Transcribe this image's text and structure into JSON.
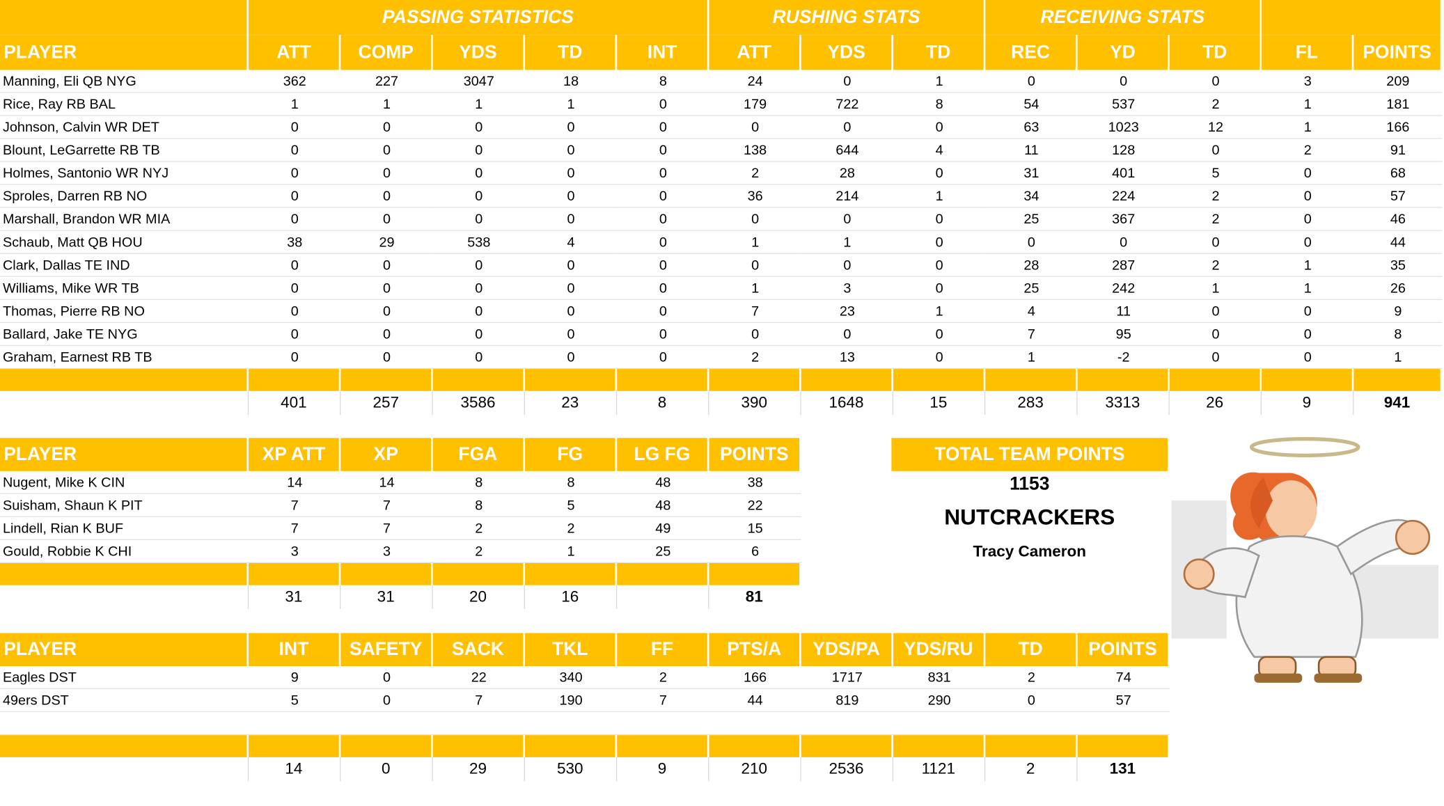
{
  "colors": {
    "header_bg": "#ffc000",
    "header_text": "#ffffff",
    "body_text": "#000000"
  },
  "offense": {
    "groups": [
      "PASSING STATISTICS",
      "RUSHING STATS",
      "RECEIVING STATS"
    ],
    "columns": [
      "PLAYER",
      "ATT",
      "COMP",
      "YDS",
      "TD",
      "INT",
      "ATT",
      "YDS",
      "TD",
      "REC",
      "YD",
      "TD",
      "FL",
      "POINTS"
    ],
    "rows": [
      [
        "Manning, Eli QB NYG",
        "362",
        "227",
        "3047",
        "18",
        "8",
        "24",
        "0",
        "1",
        "0",
        "0",
        "0",
        "3",
        "209"
      ],
      [
        "Rice, Ray RB BAL",
        "1",
        "1",
        "1",
        "1",
        "0",
        "179",
        "722",
        "8",
        "54",
        "537",
        "2",
        "1",
        "181"
      ],
      [
        "Johnson, Calvin WR DET",
        "0",
        "0",
        "0",
        "0",
        "0",
        "0",
        "0",
        "0",
        "63",
        "1023",
        "12",
        "1",
        "166"
      ],
      [
        "Blount, LeGarrette RB TB",
        "0",
        "0",
        "0",
        "0",
        "0",
        "138",
        "644",
        "4",
        "11",
        "128",
        "0",
        "2",
        "91"
      ],
      [
        "Holmes, Santonio WR NYJ",
        "0",
        "0",
        "0",
        "0",
        "0",
        "2",
        "28",
        "0",
        "31",
        "401",
        "5",
        "0",
        "68"
      ],
      [
        "Sproles, Darren RB NO",
        "0",
        "0",
        "0",
        "0",
        "0",
        "36",
        "214",
        "1",
        "34",
        "224",
        "2",
        "0",
        "57"
      ],
      [
        "Marshall, Brandon WR MIA",
        "0",
        "0",
        "0",
        "0",
        "0",
        "0",
        "0",
        "0",
        "25",
        "367",
        "2",
        "0",
        "46"
      ],
      [
        "Schaub, Matt QB HOU",
        "38",
        "29",
        "538",
        "4",
        "0",
        "1",
        "1",
        "0",
        "0",
        "0",
        "0",
        "0",
        "44"
      ],
      [
        "Clark, Dallas TE IND",
        "0",
        "0",
        "0",
        "0",
        "0",
        "0",
        "0",
        "0",
        "28",
        "287",
        "2",
        "1",
        "35"
      ],
      [
        "Williams, Mike WR TB",
        "0",
        "0",
        "0",
        "0",
        "0",
        "1",
        "3",
        "0",
        "25",
        "242",
        "1",
        "1",
        "26"
      ],
      [
        "Thomas, Pierre RB NO",
        "0",
        "0",
        "0",
        "0",
        "0",
        "7",
        "23",
        "1",
        "4",
        "11",
        "0",
        "0",
        "9"
      ],
      [
        "Ballard, Jake TE NYG",
        "0",
        "0",
        "0",
        "0",
        "0",
        "0",
        "0",
        "0",
        "7",
        "95",
        "0",
        "0",
        "8"
      ],
      [
        "Graham, Earnest RB TB",
        "0",
        "0",
        "0",
        "0",
        "0",
        "2",
        "13",
        "0",
        "1",
        "-2",
        "0",
        "0",
        "1"
      ]
    ],
    "totals": [
      "",
      "401",
      "257",
      "3586",
      "23",
      "8",
      "390",
      "1648",
      "15",
      "283",
      "3313",
      "26",
      "9",
      "941"
    ]
  },
  "kickers": {
    "columns": [
      "PLAYER",
      "XP ATT",
      "XP",
      "FGA",
      "FG",
      "LG FG",
      "POINTS"
    ],
    "rows": [
      [
        "Nugent, Mike K CIN",
        "14",
        "14",
        "8",
        "8",
        "48",
        "38"
      ],
      [
        "Suisham, Shaun K PIT",
        "7",
        "7",
        "8",
        "5",
        "48",
        "22"
      ],
      [
        "Lindell, Rian K BUF",
        "7",
        "7",
        "2",
        "2",
        "49",
        "15"
      ],
      [
        "Gould, Robbie K CHI",
        "3",
        "3",
        "2",
        "1",
        "25",
        "6"
      ]
    ],
    "totals": [
      "",
      "31",
      "31",
      "20",
      "16",
      "",
      "81"
    ]
  },
  "defense": {
    "columns": [
      "PLAYER",
      "INT",
      "SAFETY",
      "SACK",
      "TKL",
      "FF",
      "PTS/A",
      "YDS/PA",
      "YDS/RU",
      "TD",
      "POINTS"
    ],
    "rows": [
      [
        "Eagles DST",
        "9",
        "0",
        "22",
        "340",
        "2",
        "166",
        "1717",
        "831",
        "2",
        "74"
      ],
      [
        "49ers DST",
        "5",
        "0",
        "7",
        "190",
        "7",
        "44",
        "819",
        "290",
        "0",
        "57"
      ]
    ],
    "totals": [
      "",
      "14",
      "0",
      "29",
      "530",
      "9",
      "210",
      "2536",
      "1121",
      "2",
      "131"
    ]
  },
  "team": {
    "total_label": "TOTAL TEAM POINTS",
    "total_points": "1153",
    "name": "NUTCRACKERS",
    "owner": "Tracy Cameron",
    "logo_icon": "angel-mascot-icon"
  }
}
